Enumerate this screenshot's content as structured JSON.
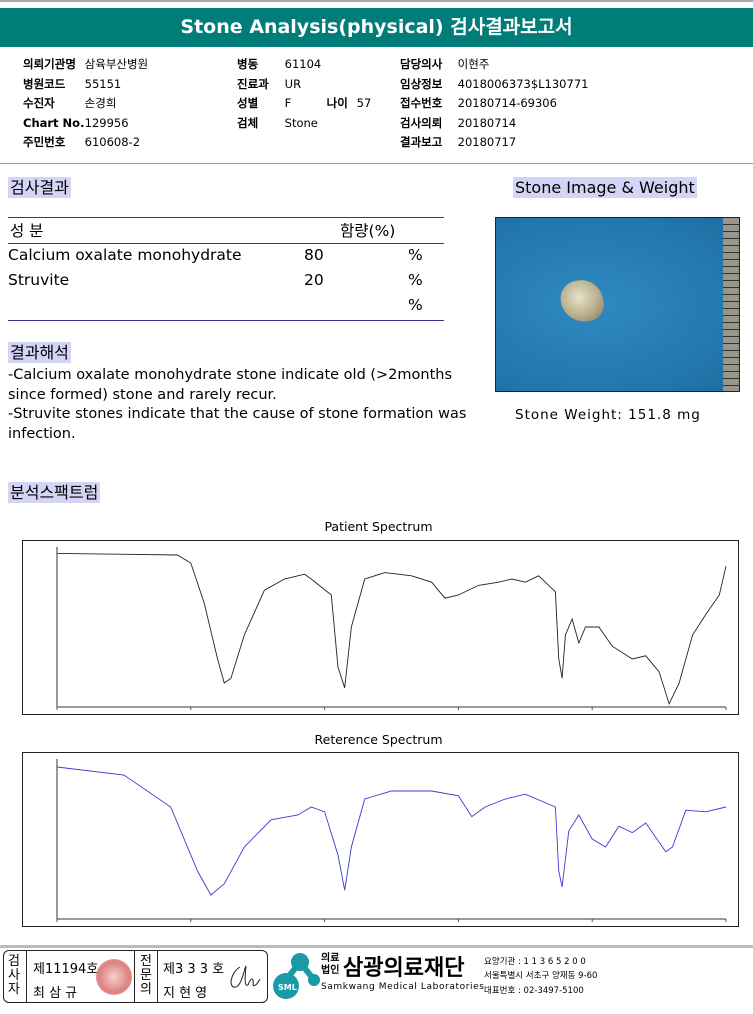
{
  "header": {
    "title": "Stone Analysis(physical) 검사결과보고서"
  },
  "info": {
    "col1": [
      {
        "label": "의뢰기관명",
        "value": "삼육부산병원"
      },
      {
        "label": "병원코드",
        "value": "55151"
      },
      {
        "label": "수진자",
        "value": "손경희"
      },
      {
        "label": "Chart No.",
        "value": "129956"
      },
      {
        "label": "주민번호",
        "value": "610608-2"
      }
    ],
    "col2": [
      {
        "label": "병동",
        "value": "61104"
      },
      {
        "label": "진료과",
        "value": "UR"
      },
      {
        "label": "성별",
        "value": "F"
      },
      {
        "label": "검체",
        "value": "Stone"
      }
    ],
    "age": {
      "label": "나이",
      "value": "57"
    },
    "col3": [
      {
        "label": "담당의사",
        "value": "이현주"
      },
      {
        "label": "임상정보",
        "value": "4018006373$L130771"
      },
      {
        "label": "접수번호",
        "value": "20180714-69306"
      },
      {
        "label": "검사의뢰",
        "value": "20180714"
      },
      {
        "label": "결과보고",
        "value": "20180717"
      }
    ]
  },
  "results": {
    "heading": "검사결과",
    "col_component": "성 분",
    "col_amount": "함량(%)",
    "rows": [
      {
        "name": "Calcium oxalate monohydrate",
        "value": "80",
        "unit": "%"
      },
      {
        "name": "Struvite",
        "value": "20",
        "unit": "%"
      },
      {
        "name": "",
        "value": "",
        "unit": "%"
      }
    ]
  },
  "interpretation": {
    "heading": "결과해석",
    "lines": [
      " -Calcium oxalate monohydrate stone indicate old (>2months since formed) stone and rarely recur.",
      "-Struvite stones indicate that the cause of stone formation was infection."
    ]
  },
  "stone": {
    "heading": "Stone Image & Weight",
    "weight": "Stone Weight:  151.8  mg"
  },
  "spectrum": {
    "heading": "분석스팩트럼",
    "patient_title": "Patient Spectrum",
    "reference_title": "Reterence Spectrum",
    "patient_color": "#222222",
    "reference_color": "#3a3ad0"
  },
  "footer": {
    "examiner_label": "검사자",
    "examiner_no": "제11194호",
    "examiner_name": "최 삼 규",
    "doctor_label": "전문의",
    "doctor_no": "제3 3 3 호",
    "doctor_name": "지 현 영",
    "logo_text": "SML",
    "org_type_1": "의료",
    "org_type_2": "법인",
    "org_name": "삼광의료재단",
    "org_name_en": "Samkwang Medical Laboratories",
    "code": "요양기관 : 1 1 3 6 5 2 0 0",
    "address": "서울특별시 서초구 양재동 9-60",
    "phone": "대표번호 : 02-3497-5100",
    "accent": "#1a9aa6"
  }
}
